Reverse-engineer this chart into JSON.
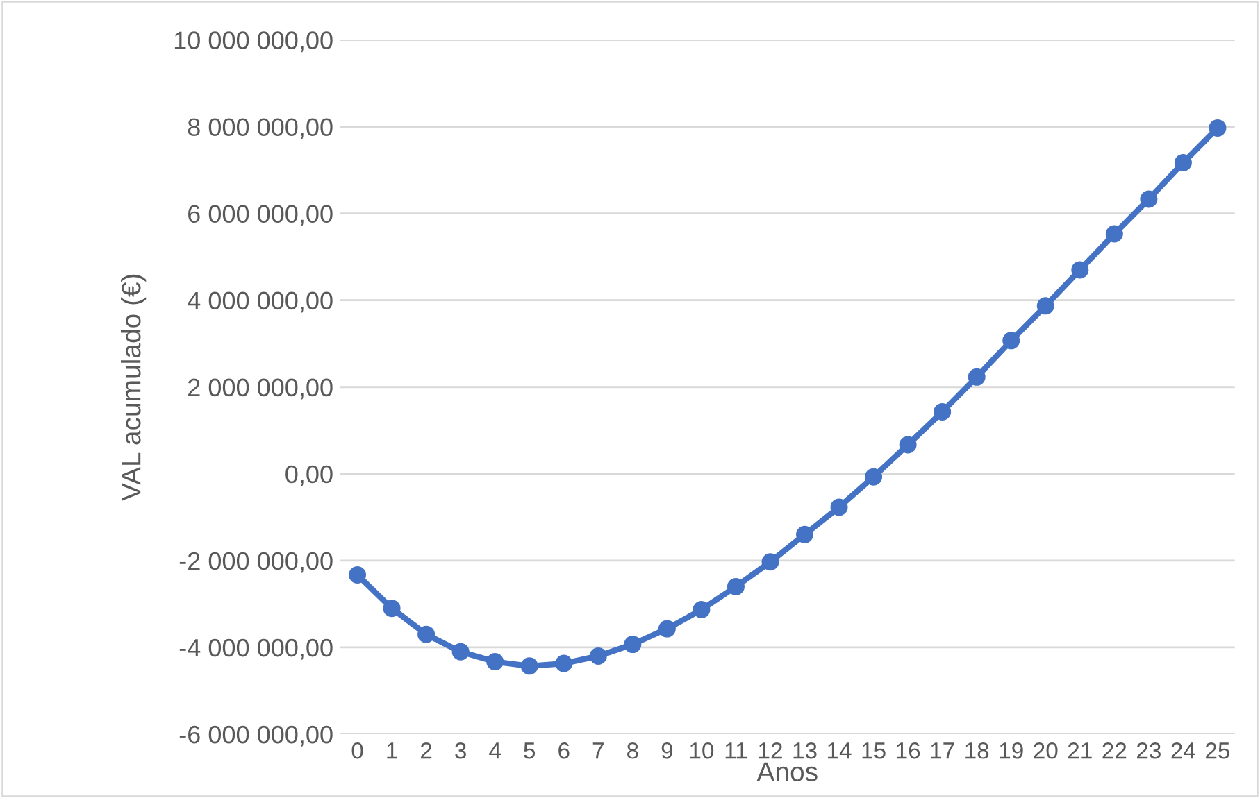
{
  "chart_data": {
    "type": "line",
    "xlabel": "Anos",
    "ylabel": "VAL acumulado (€)",
    "categories": [
      "0",
      "1",
      "2",
      "3",
      "4",
      "5",
      "6",
      "7",
      "8",
      "9",
      "10",
      "11",
      "12",
      "13",
      "14",
      "15",
      "16",
      "17",
      "18",
      "19",
      "20",
      "21",
      "22",
      "23",
      "24",
      "25"
    ],
    "series": [
      {
        "color": "#4472c4",
        "values": [
          -2330000,
          -3100000,
          -3700000,
          -4100000,
          -4330000,
          -4430000,
          -4370000,
          -4200000,
          -3930000,
          -3570000,
          -3130000,
          -2600000,
          -2030000,
          -1400000,
          -770000,
          -70000,
          670000,
          1430000,
          2230000,
          3070000,
          3870000,
          4700000,
          5530000,
          6330000,
          7170000,
          7970000
        ]
      }
    ],
    "ylim": [
      -6000000,
      10000000
    ],
    "yticks": [
      {
        "value": -6000000,
        "label": "-6 000 000,00"
      },
      {
        "value": -4000000,
        "label": "-4 000 000,00"
      },
      {
        "value": -2000000,
        "label": "-2 000 000,00"
      },
      {
        "value": 0,
        "label": "0,00"
      },
      {
        "value": 2000000,
        "label": "2 000 000,00"
      },
      {
        "value": 4000000,
        "label": "4 000 000,00"
      },
      {
        "value": 6000000,
        "label": "6 000 000,00"
      },
      {
        "value": 8000000,
        "label": "8 000 000,00"
      },
      {
        "value": 10000000,
        "label": "10 000 000,00"
      }
    ],
    "grid": "y",
    "marker": "circle",
    "line_style": "solid",
    "legend": false
  }
}
